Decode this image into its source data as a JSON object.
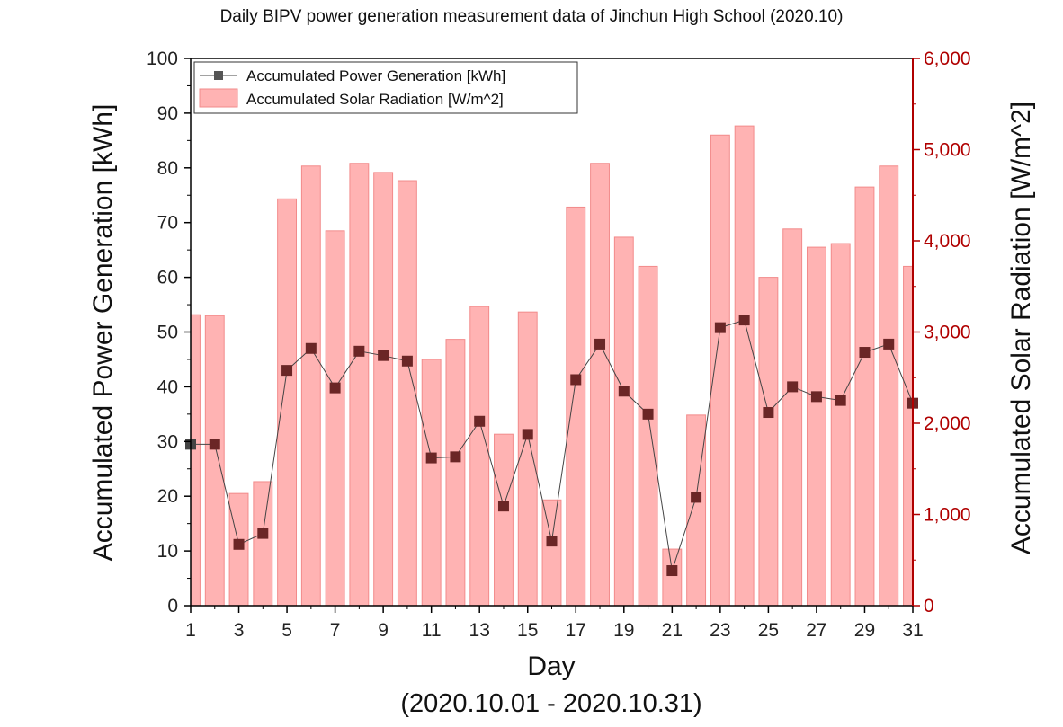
{
  "chart_data": {
    "type": "bar",
    "title": "Daily BIPV power generation measurement data of Jinchun High School (2020.10)",
    "xlabel": "Day",
    "x_subtitle": "(2020.10.01 - 2020.10.31)",
    "ylabel_left": "Accumulated Power Generation [kWh]",
    "ylabel_right": "Accumulated Solar Radiation [W/m^2]",
    "xlim": [
      1,
      31
    ],
    "ylim_left": [
      0,
      100
    ],
    "ylim_right": [
      0,
      6000
    ],
    "x_ticks": [
      1,
      3,
      5,
      7,
      9,
      11,
      13,
      15,
      17,
      19,
      21,
      23,
      25,
      27,
      29,
      31
    ],
    "y_left_ticks": [
      0,
      10,
      20,
      30,
      40,
      50,
      60,
      70,
      80,
      90,
      100
    ],
    "y_right_ticks": [
      "0",
      "1,000",
      "2,000",
      "3,000",
      "4,000",
      "5,000",
      "6,000"
    ],
    "x": [
      1,
      2,
      3,
      4,
      5,
      6,
      7,
      8,
      9,
      10,
      11,
      12,
      13,
      14,
      15,
      16,
      17,
      18,
      19,
      20,
      21,
      22,
      23,
      24,
      25,
      26,
      27,
      28,
      29,
      30,
      31
    ],
    "series": [
      {
        "name": "Accumulated Power Generation [kWh]",
        "type": "line",
        "axis": "left",
        "color": "#6b2626",
        "values": [
          29.5,
          29.5,
          11.2,
          13.2,
          43.0,
          47.0,
          39.8,
          46.5,
          45.7,
          44.7,
          27.0,
          27.2,
          33.7,
          18.2,
          31.3,
          11.8,
          41.3,
          47.8,
          39.2,
          35.0,
          6.4,
          19.8,
          50.8,
          52.2,
          35.3,
          40.0,
          38.2,
          37.5,
          46.3,
          47.8,
          37.0
        ]
      },
      {
        "name": "Accumulated Solar Radiation [W/m^2]",
        "type": "bar",
        "axis": "right",
        "color": "#ffb3b3",
        "values": [
          3190,
          3180,
          1230,
          1360,
          4460,
          4820,
          4110,
          4850,
          4750,
          4660,
          2700,
          2920,
          3280,
          1880,
          3220,
          1160,
          4370,
          4850,
          4040,
          3720,
          620,
          2090,
          5160,
          5260,
          3600,
          4130,
          3930,
          3970,
          4590,
          4820,
          3720
        ]
      }
    ],
    "legend_position": "top-left"
  },
  "colors": {
    "bar_fill": "#ffb3b3",
    "bar_stroke": "#f28b8b",
    "line": "#444444",
    "marker": "#6b2626",
    "right_axis": "#b00000"
  }
}
